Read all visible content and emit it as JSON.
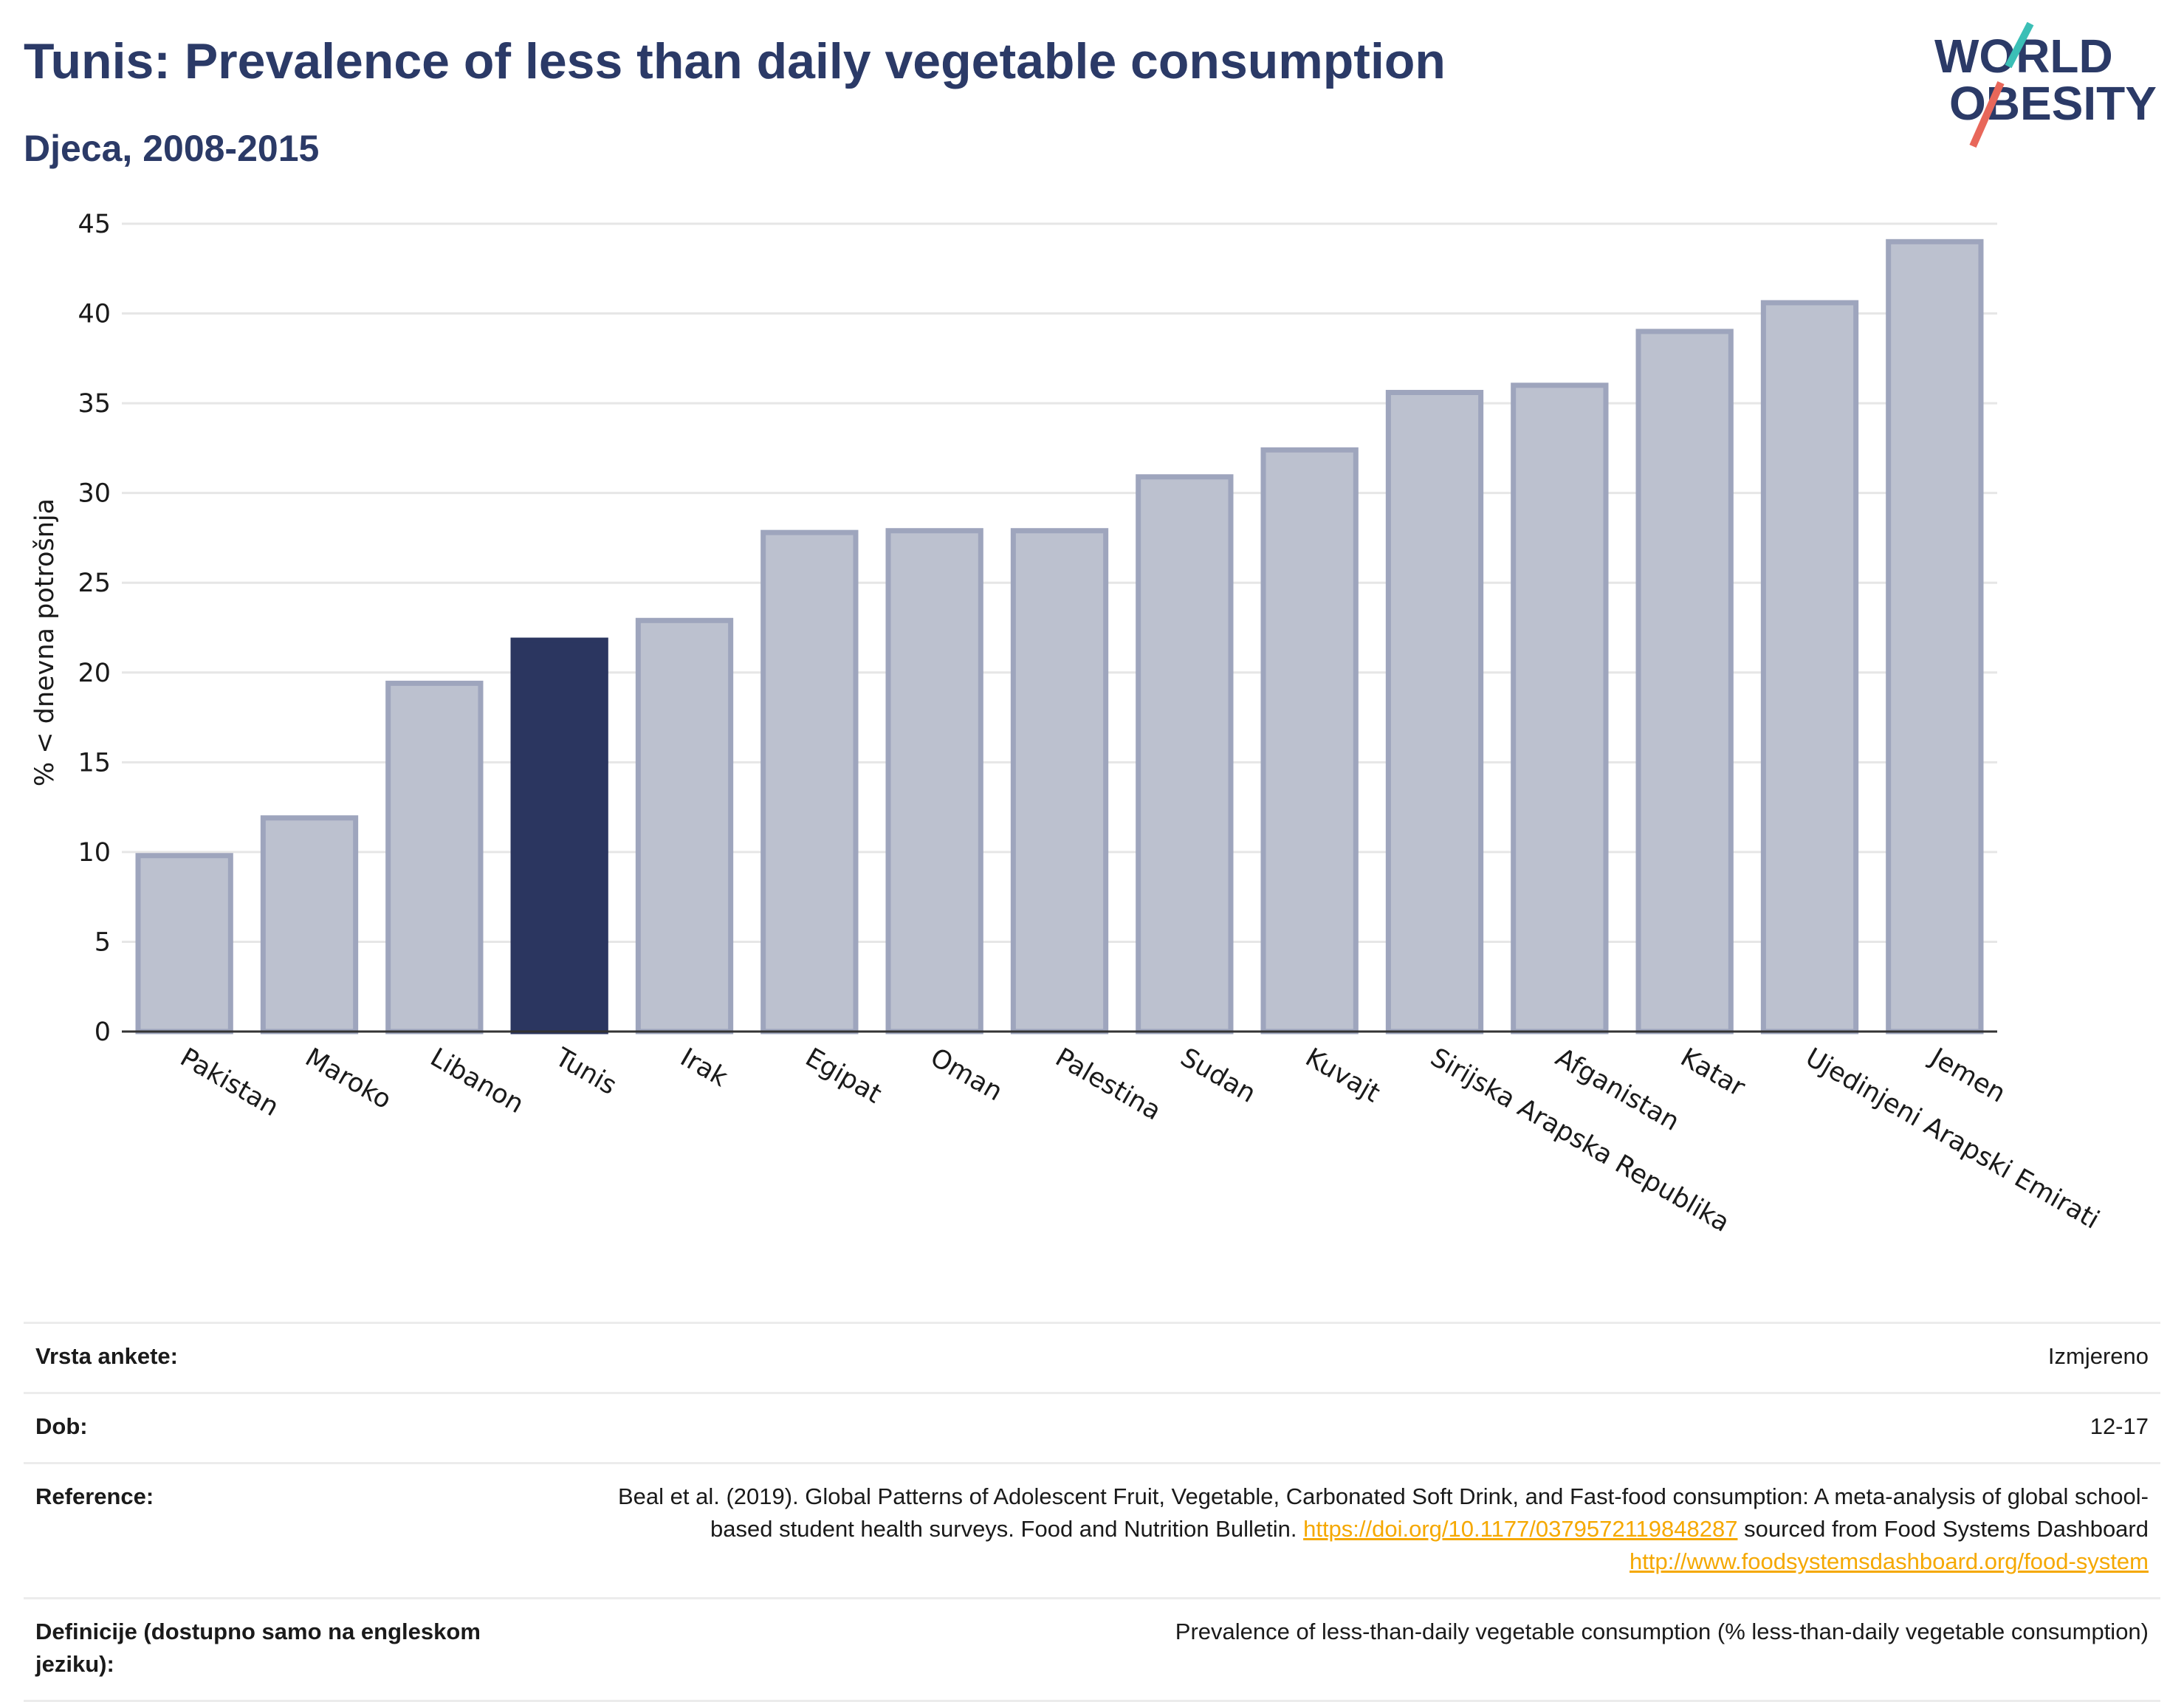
{
  "header": {
    "title": "Tunis: Prevalence of less than daily vegetable consumption",
    "subtitle": "Djeca, 2008-2015"
  },
  "logo": {
    "line1": "WORLD",
    "line2": "OBESITY"
  },
  "colors": {
    "highlight": "#2b3660",
    "bar": "#bcc1cf",
    "bar_border": "#9ea5bd",
    "title": "#2b3a67",
    "link": "#f5a800",
    "logo_teal": "#3bbfb6",
    "logo_red": "#e8675a"
  },
  "chart_data": {
    "type": "bar",
    "title": "Tunis: Prevalence of less than daily vegetable consumption",
    "subtitle": "Djeca, 2008-2015",
    "xlabel": "",
    "ylabel": "% < dnevna potrošnja",
    "ylim": [
      0,
      45
    ],
    "yticks": [
      0,
      5,
      10,
      15,
      20,
      25,
      30,
      35,
      40,
      45
    ],
    "grid": true,
    "highlight": "Tunis",
    "categories": [
      "Pakistan",
      "Maroko",
      "Libanon",
      "Tunis",
      "Irak",
      "Egipat",
      "Oman",
      "Palestina",
      "Sudan",
      "Kuvajt",
      "Sirijska Arapska Republika",
      "Afganistan",
      "Katar",
      "Ujedinjeni Arapski Emirati",
      "Jemen"
    ],
    "values": [
      9.8,
      11.9,
      19.4,
      21.8,
      22.9,
      27.8,
      27.9,
      27.9,
      30.9,
      32.4,
      35.6,
      36.0,
      39.0,
      40.6,
      44.0
    ]
  },
  "meta": {
    "survey_label": "Vrsta ankete:",
    "survey_value": "Izmjereno",
    "age_label": "Dob:",
    "age_value": "12-17",
    "ref_label": "Reference:",
    "ref_text1": "Beal et al. (2019). Global Patterns of Adolescent Fruit, Vegetable, Carbonated Soft Drink, and Fast-food consumption: A meta-analysis of global school-based student health surveys. Food and Nutrition Bulletin. ",
    "ref_link1": "https://doi.org/10.1177/0379572119848287",
    "ref_text2": " sourced from Food Systems Dashboard ",
    "ref_link2": "http://www.foodsystemsdashboard.org/food-system",
    "def_label": "Definicije (dostupno samo na engleskom jeziku):",
    "def_value": "Prevalence of less-than-daily vegetable consumption (% less-than-daily vegetable consumption)"
  }
}
